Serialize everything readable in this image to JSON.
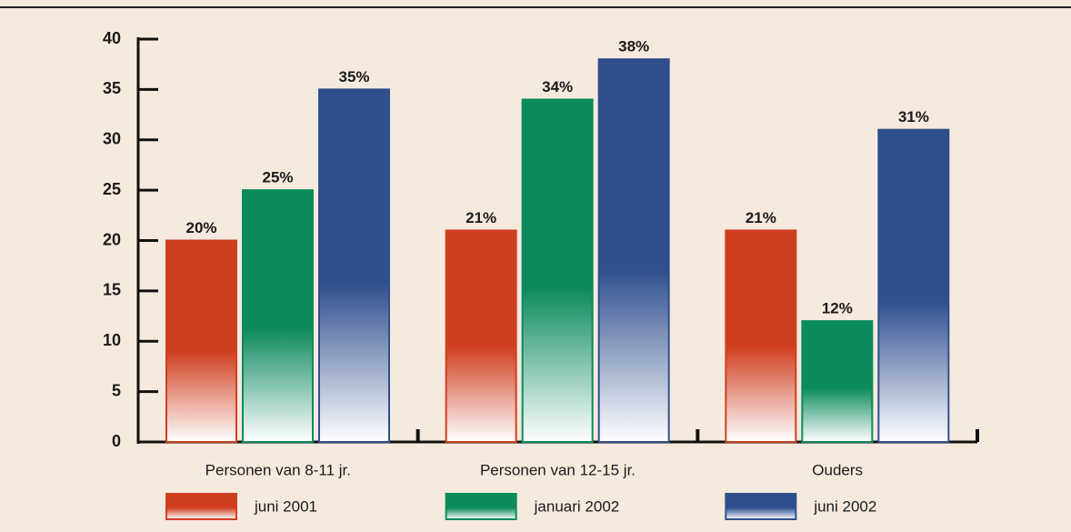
{
  "chart_data": {
    "type": "bar",
    "categories": [
      "Personen van 8-11 jr.",
      "Personen van 12-15 jr.",
      "Ouders"
    ],
    "series": [
      {
        "name": "juni 2001",
        "color": "#cf3f1f",
        "values": [
          20,
          21,
          21
        ],
        "value_labels": [
          "20%",
          "21%",
          "21%"
        ]
      },
      {
        "name": "januari 2002",
        "color": "#0b8a5c",
        "values": [
          25,
          34,
          12
        ],
        "value_labels": [
          "25%",
          "34%",
          "12%"
        ]
      },
      {
        "name": "juni 2002",
        "color": "#2f4f8e",
        "values": [
          35,
          38,
          31
        ],
        "value_labels": [
          "35%",
          "38%",
          "31%"
        ]
      }
    ],
    "ylim": [
      0,
      40
    ],
    "yticks": [
      0,
      5,
      10,
      15,
      20,
      25,
      30,
      35,
      40
    ],
    "grid": false,
    "legend": "bottom"
  }
}
